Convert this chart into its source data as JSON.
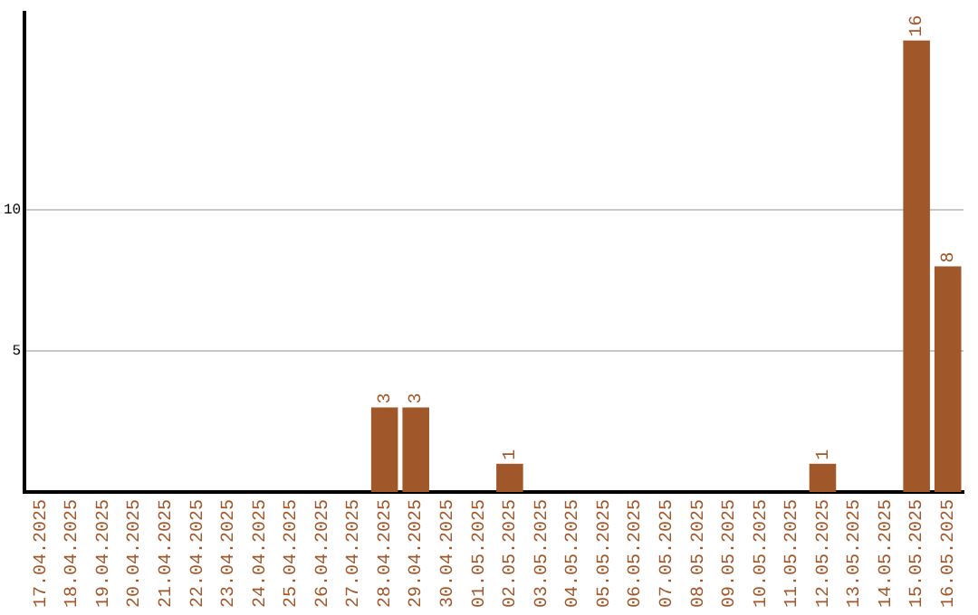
{
  "chart_data": {
    "type": "bar",
    "categories": [
      "17.04.2025",
      "18.04.2025",
      "19.04.2025",
      "20.04.2025",
      "21.04.2025",
      "22.04.2025",
      "23.04.2025",
      "24.04.2025",
      "25.04.2025",
      "26.04.2025",
      "27.04.2025",
      "28.04.2025",
      "29.04.2025",
      "30.04.2025",
      "01.05.2025",
      "02.05.2025",
      "03.05.2025",
      "04.05.2025",
      "05.05.2025",
      "06.05.2025",
      "07.05.2025",
      "08.05.2025",
      "09.05.2025",
      "10.05.2025",
      "11.05.2025",
      "12.05.2025",
      "13.05.2025",
      "14.05.2025",
      "15.05.2025",
      "16.05.2025"
    ],
    "values": [
      0,
      0,
      0,
      0,
      0,
      0,
      0,
      0,
      0,
      0,
      0,
      3,
      3,
      0,
      0,
      1,
      0,
      0,
      0,
      0,
      0,
      0,
      0,
      0,
      0,
      1,
      0,
      0,
      16,
      8
    ],
    "value_labels": [
      null,
      null,
      null,
      null,
      null,
      null,
      null,
      null,
      null,
      null,
      null,
      "3",
      "3",
      null,
      null,
      "1",
      null,
      null,
      null,
      null,
      null,
      null,
      null,
      null,
      null,
      "1",
      null,
      null,
      "16",
      "8"
    ],
    "color": "#a0572a",
    "ylim": [
      0,
      17
    ],
    "yticks": [
      5,
      10
    ],
    "grid": "y",
    "legend": false
  }
}
